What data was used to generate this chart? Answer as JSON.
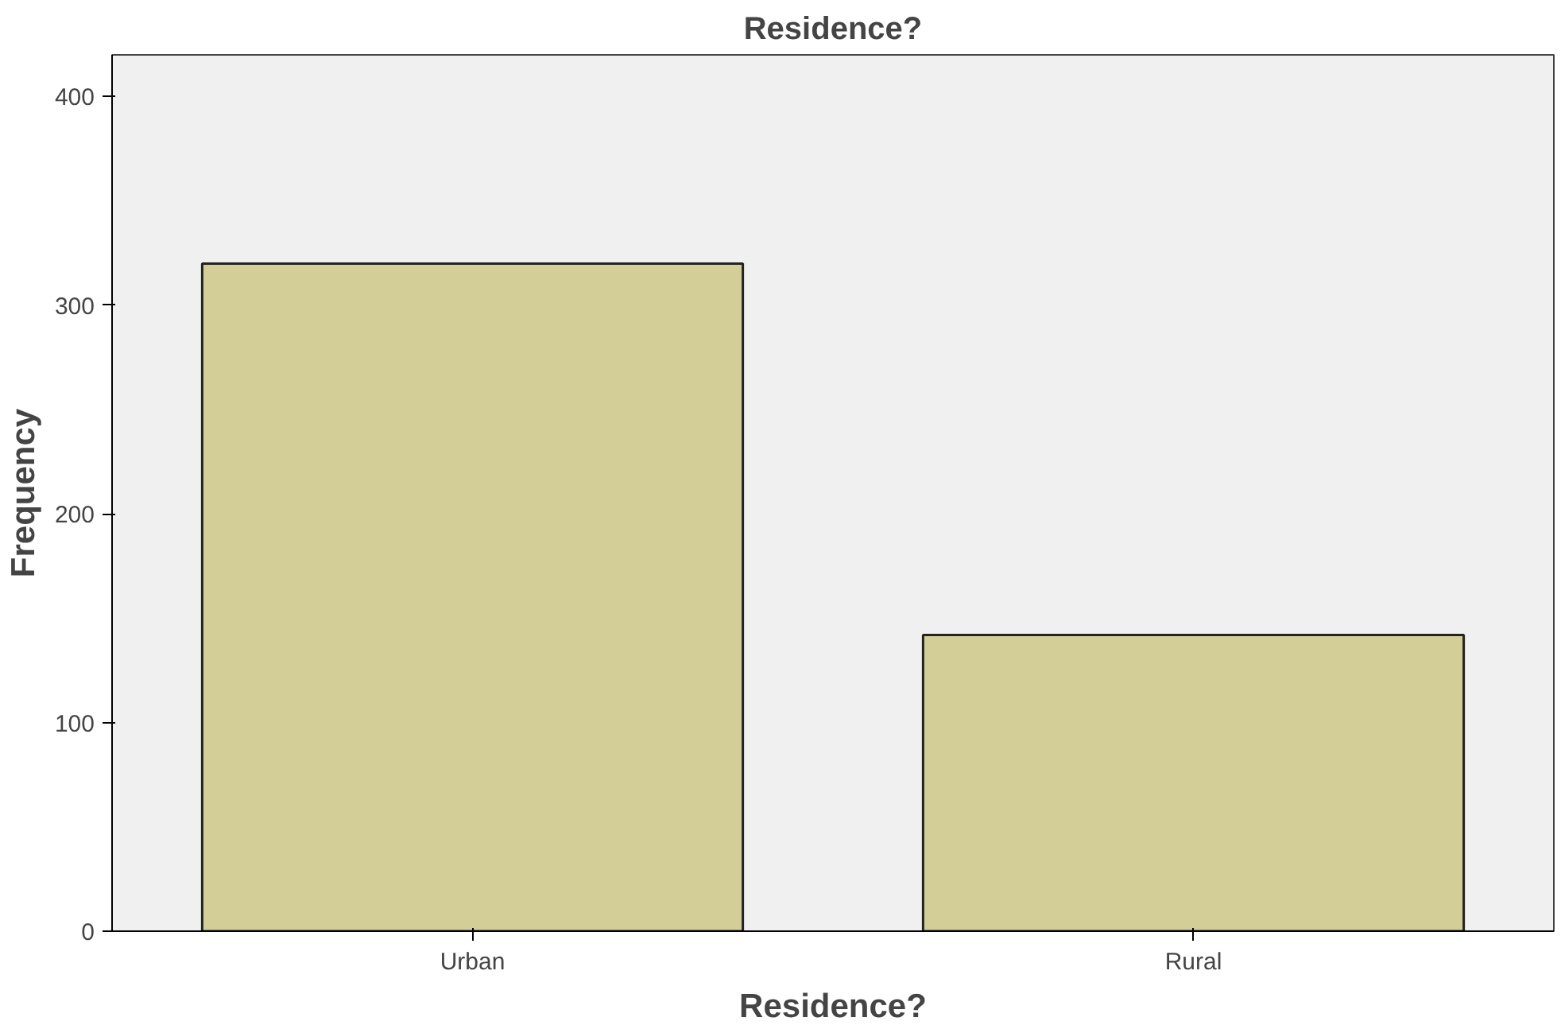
{
  "chart_data": {
    "type": "bar",
    "title": "Residence?",
    "xlabel": "Residence?",
    "ylabel": "Frequency",
    "categories": [
      "Urban",
      "Rural"
    ],
    "values": [
      320,
      142
    ],
    "color": "#d3ce97",
    "ylim": [
      0,
      420
    ],
    "yticks": [
      0,
      100,
      200,
      300,
      400
    ],
    "grid": false
  }
}
